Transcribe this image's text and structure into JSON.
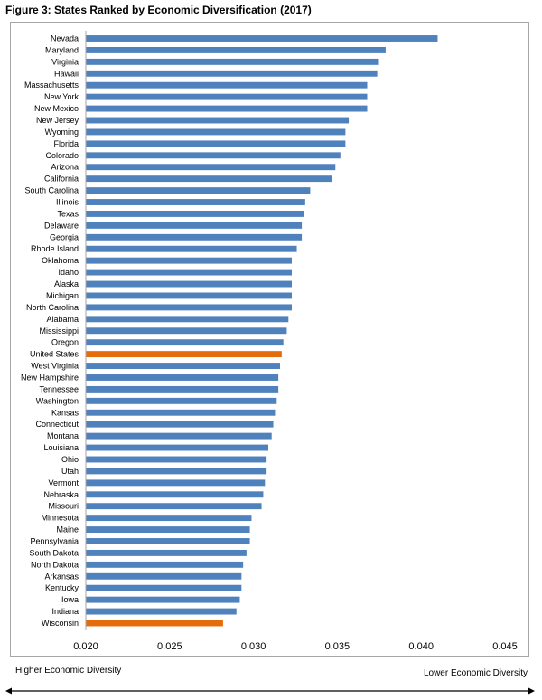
{
  "figure_title": "Figure 3: States Ranked by Economic Diversification (2017)",
  "footer": {
    "left_label": "Higher Economic Diversity",
    "right_label": "Lower Economic Diversity"
  },
  "colors": {
    "default_bar": "#4f81bd",
    "highlight_bar": "#e46c0a",
    "axis": "#a6a6a6"
  },
  "chart_data": {
    "type": "bar",
    "orientation": "horizontal",
    "title": "Figure 3: States Ranked by Economic Diversification (2017)",
    "xlabel": "",
    "ylabel": "",
    "xlim": [
      0.02,
      0.045
    ],
    "xticks": [
      "0.020",
      "0.025",
      "0.030",
      "0.035",
      "0.040",
      "0.045"
    ],
    "tick_values": [
      0.02,
      0.025,
      0.03,
      0.035,
      0.04,
      0.045
    ],
    "grid": false,
    "highlighted": [
      "United States",
      "Wisconsin"
    ],
    "categories": [
      "Nevada",
      "Maryland",
      "Virginia",
      "Hawaii",
      "Massachusetts",
      "New York",
      "New Mexico",
      "New Jersey",
      "Wyoming",
      "Florida",
      "Colorado",
      "Arizona",
      "California",
      "South Carolina",
      "Illinois",
      "Texas",
      "Delaware",
      "Georgia",
      "Rhode Island",
      "Oklahoma",
      "Idaho",
      "Alaska",
      "Michigan",
      "North Carolina",
      "Alabama",
      "Mississippi",
      "Oregon",
      "United States",
      "West Virginia",
      "New Hampshire",
      "Tennessee",
      "Washington",
      "Kansas",
      "Connecticut",
      "Montana",
      "Louisiana",
      "Ohio",
      "Utah",
      "Vermont",
      "Nebraska",
      "Missouri",
      "Minnesota",
      "Maine",
      "Pennsylvania",
      "South Dakota",
      "North Dakota",
      "Arkansas",
      "Kentucky",
      "Iowa",
      "Indiana",
      "Wisconsin"
    ],
    "values": [
      0.041,
      0.0379,
      0.0375,
      0.0374,
      0.0368,
      0.0368,
      0.0368,
      0.0357,
      0.0355,
      0.0355,
      0.0352,
      0.0349,
      0.0347,
      0.0334,
      0.0331,
      0.033,
      0.0329,
      0.0329,
      0.0326,
      0.0323,
      0.0323,
      0.0323,
      0.0323,
      0.0323,
      0.0321,
      0.032,
      0.0318,
      0.0317,
      0.0316,
      0.0315,
      0.0315,
      0.0314,
      0.0313,
      0.0312,
      0.0311,
      0.0309,
      0.0308,
      0.0308,
      0.0307,
      0.0306,
      0.0305,
      0.0299,
      0.0298,
      0.0298,
      0.0296,
      0.0294,
      0.0293,
      0.0293,
      0.0292,
      0.029,
      0.0282
    ]
  }
}
